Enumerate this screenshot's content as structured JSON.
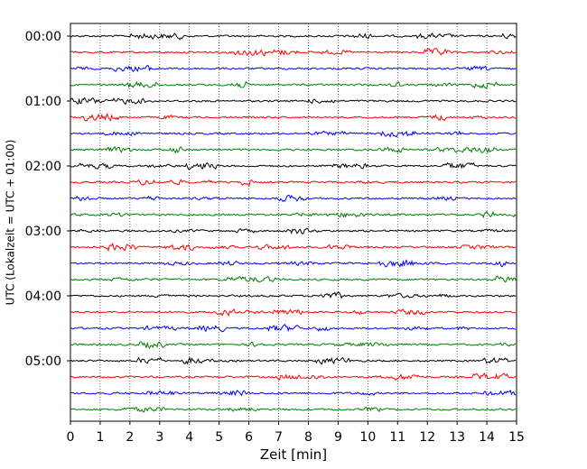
{
  "chart_data": {
    "type": "line",
    "subtype": "helicorder",
    "title": "",
    "xlabel": "Zeit  [min]",
    "ylabel": "UTC (Lokalzeit = UTC + 01:00)",
    "xlim": [
      0,
      15
    ],
    "x_ticks": [
      "0",
      "1",
      "2",
      "3",
      "4",
      "5",
      "6",
      "7",
      "8",
      "9",
      "10",
      "11",
      "12",
      "13",
      "14",
      "15"
    ],
    "y_tick_labels": [
      "00:00",
      "01:00",
      "02:00",
      "03:00",
      "04:00",
      "05:00"
    ],
    "trace_start_times": [
      "00:00",
      "00:15",
      "00:30",
      "00:45",
      "01:00",
      "01:15",
      "01:30",
      "01:45",
      "02:00",
      "02:15",
      "02:30",
      "02:45",
      "03:00",
      "03:15",
      "03:30",
      "03:45",
      "04:00",
      "04:15",
      "04:30",
      "04:45",
      "05:00",
      "05:15",
      "05:30",
      "05:45"
    ],
    "trace_colors": [
      "#000000",
      "#ff0000",
      "#0000ff",
      "#008000"
    ],
    "grid": "vertical dotted lines at every minute",
    "legend": "none"
  }
}
